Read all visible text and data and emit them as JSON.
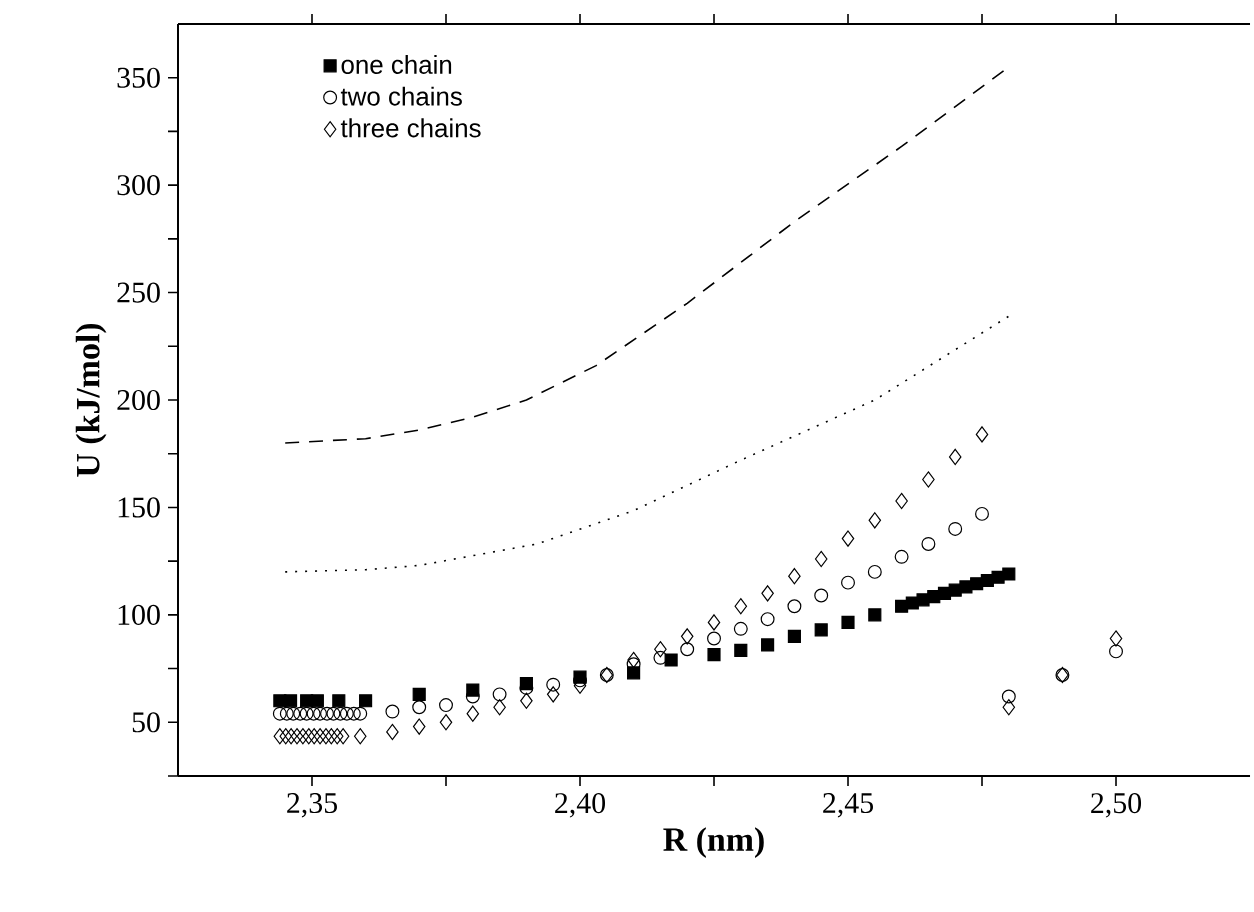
{
  "chart_data": {
    "type": "scatter",
    "xlabel": "R (nm)",
    "ylabel": "U (kJ/mol)",
    "xlim": [
      2.325,
      2.525
    ],
    "ylim": [
      25,
      375
    ],
    "xticks": [
      {
        "value": 2.35,
        "label": "2,35"
      },
      {
        "value": 2.375,
        "label": null
      },
      {
        "value": 2.4,
        "label": "2,40"
      },
      {
        "value": 2.425,
        "label": null
      },
      {
        "value": 2.45,
        "label": "2,45"
      },
      {
        "value": 2.475,
        "label": null
      },
      {
        "value": 2.5,
        "label": "2,50"
      }
    ],
    "yticks": [
      {
        "value": 25,
        "label": null
      },
      50,
      {
        "value": 75,
        "label": null
      },
      100,
      {
        "value": 125,
        "label": null
      },
      150,
      {
        "value": 175,
        "label": null
      },
      200,
      {
        "value": 225,
        "label": null
      },
      250,
      {
        "value": 275,
        "label": null
      },
      300,
      {
        "value": 325,
        "label": null
      },
      350
    ],
    "legend": "top left",
    "grid": false,
    "series": [
      {
        "name": "one chain",
        "color": "#000000",
        "marker": "square",
        "x": [
          2.344,
          2.346,
          2.349,
          2.351,
          2.355,
          2.36,
          2.37,
          2.38,
          2.39,
          2.4,
          2.41,
          2.417,
          2.425,
          2.43,
          2.435,
          2.44,
          2.445,
          2.45,
          2.455,
          2.46,
          2.462,
          2.464,
          2.466,
          2.468,
          2.47,
          2.472,
          2.474,
          2.476,
          2.478,
          2.48
        ],
        "values": [
          60,
          60,
          60,
          60,
          60,
          60,
          63,
          65,
          68,
          71,
          73,
          79,
          81.5,
          83.5,
          86,
          90,
          93,
          96.5,
          100,
          104,
          105.5,
          107,
          108.5,
          110,
          111.5,
          113,
          114.5,
          116,
          117.5,
          119
        ]
      },
      {
        "name": "two chains",
        "color": "#000000",
        "marker": "circle",
        "x": [
          2.344,
          2.3453,
          2.3465,
          2.3478,
          2.349,
          2.3503,
          2.3515,
          2.3528,
          2.354,
          2.3553,
          2.3565,
          2.3578,
          2.359,
          2.365,
          2.37,
          2.375,
          2.38,
          2.385,
          2.39,
          2.395,
          2.4,
          2.405,
          2.41,
          2.415,
          2.42,
          2.425,
          2.43,
          2.435,
          2.44,
          2.445,
          2.45,
          2.455,
          2.46,
          2.465,
          2.47,
          2.475,
          2.48,
          2.49,
          2.5
        ],
        "values": [
          54,
          54,
          54,
          54,
          54,
          54,
          54,
          54,
          54,
          54,
          54,
          54,
          54,
          55,
          57,
          58,
          62,
          63,
          66,
          67.5,
          69.5,
          72,
          77,
          80,
          84,
          89,
          93.5,
          98,
          104,
          109,
          115,
          120,
          127,
          133,
          140,
          147,
          62,
          72,
          83
        ]
      },
      {
        "name": "three chains",
        "color": "#000000",
        "marker": "diamond",
        "x": [
          2.344,
          2.3451,
          2.3461,
          2.3472,
          2.3483,
          2.3494,
          2.3504,
          2.3515,
          2.3526,
          2.3536,
          2.3547,
          2.3558,
          2.359,
          2.365,
          2.37,
          2.375,
          2.38,
          2.385,
          2.39,
          2.395,
          2.4,
          2.405,
          2.41,
          2.415,
          2.42,
          2.425,
          2.43,
          2.435,
          2.44,
          2.445,
          2.45,
          2.455,
          2.46,
          2.465,
          2.47,
          2.475,
          2.48,
          2.49,
          2.5
        ],
        "values": [
          43.5,
          43.5,
          43.5,
          43.5,
          43.5,
          43.5,
          43.5,
          43.5,
          43.5,
          43.5,
          43.5,
          43.5,
          43.5,
          45.5,
          48,
          50,
          54,
          57,
          60,
          63,
          67,
          72,
          79,
          84,
          90,
          96.5,
          104,
          110,
          118,
          126,
          135.5,
          144,
          153,
          163,
          173.5,
          184,
          57,
          72,
          89
        ]
      },
      {
        "type": "line",
        "color": "#000000",
        "line_style": "dashed",
        "x": [
          2.345,
          2.36,
          2.37,
          2.38,
          2.39,
          2.403,
          2.42,
          2.44,
          2.46,
          2.48
        ],
        "values": [
          180,
          182,
          186,
          192,
          200,
          216,
          245,
          283,
          318,
          355
        ]
      },
      {
        "type": "line",
        "color": "#000000",
        "line_style": "dotted",
        "x": [
          2.345,
          2.36,
          2.37,
          2.392,
          2.41,
          2.43,
          2.455,
          2.48
        ],
        "values": [
          120,
          121,
          123,
          133,
          148.5,
          172,
          200,
          239
        ]
      }
    ]
  }
}
